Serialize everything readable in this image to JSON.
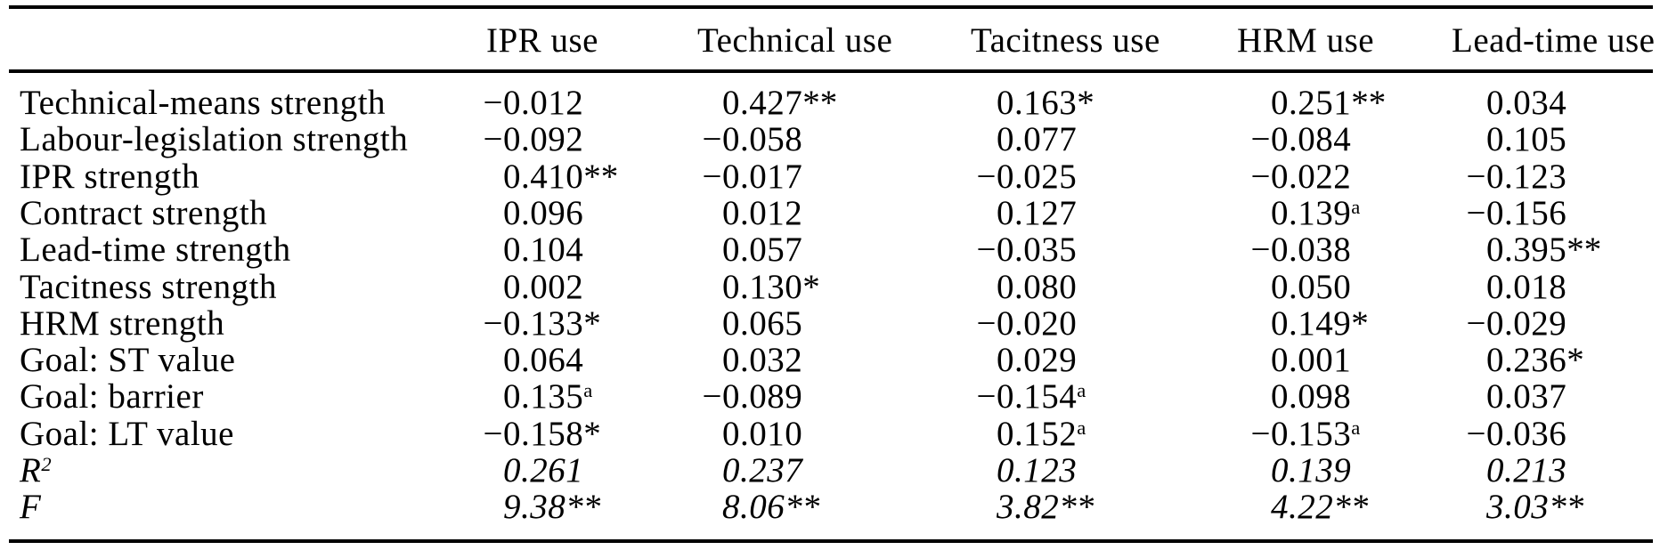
{
  "colors": {
    "background": "#ffffff",
    "text": "#000000",
    "rule": "#000000"
  },
  "chart_data": {
    "type": "table",
    "row_header_column": "",
    "columns": [
      "IPR use",
      "Technical use",
      "Tacitness use",
      "HRM use",
      "Lead-time use"
    ],
    "rows": [
      {
        "label": "Technical-means strength",
        "italic": false,
        "values": [
          "-0.012",
          "0.427**",
          "0.163*",
          "0.251**",
          "0.034"
        ]
      },
      {
        "label": "Labour-legislation strength",
        "italic": false,
        "values": [
          "-0.092",
          "-0.058",
          "0.077",
          "-0.084",
          "0.105"
        ]
      },
      {
        "label": "IPR strength",
        "italic": false,
        "values": [
          "0.410**",
          "-0.017",
          "-0.025",
          "-0.022",
          "-0.123"
        ]
      },
      {
        "label": "Contract strength",
        "italic": false,
        "values": [
          "0.096",
          "0.012",
          "0.127",
          "0.139^a",
          "-0.156"
        ]
      },
      {
        "label": "Lead-time strength",
        "italic": false,
        "values": [
          "0.104",
          "0.057",
          "-0.035",
          "-0.038",
          "0.395**"
        ]
      },
      {
        "label": "Tacitness strength",
        "italic": false,
        "values": [
          "0.002",
          "0.130*",
          "0.080",
          "0.050",
          "0.018"
        ]
      },
      {
        "label": "HRM strength",
        "italic": false,
        "values": [
          "-0.133*",
          "0.065",
          "-0.020",
          "0.149*",
          "-0.029"
        ]
      },
      {
        "label": "Goal: ST value",
        "italic": false,
        "values": [
          "0.064",
          "0.032",
          "0.029",
          "0.001",
          "0.236*"
        ]
      },
      {
        "label": "Goal: barrier",
        "italic": false,
        "values": [
          "0.135^a",
          "-0.089",
          "-0.154^a",
          "0.098",
          "0.037"
        ]
      },
      {
        "label": "Goal: LT value",
        "italic": false,
        "values": [
          "-0.158*",
          "0.010",
          "0.152^a",
          "-0.153^a",
          "-0.036"
        ]
      },
      {
        "label": "R",
        "label_sup": "2",
        "italic": true,
        "values": [
          "0.261",
          "0.237",
          "0.123",
          "0.139",
          "0.213"
        ]
      },
      {
        "label": "F",
        "italic": true,
        "values": [
          "9.38**",
          "8.06**",
          "3.82**",
          "4.22**",
          "3.03**"
        ]
      }
    ]
  }
}
